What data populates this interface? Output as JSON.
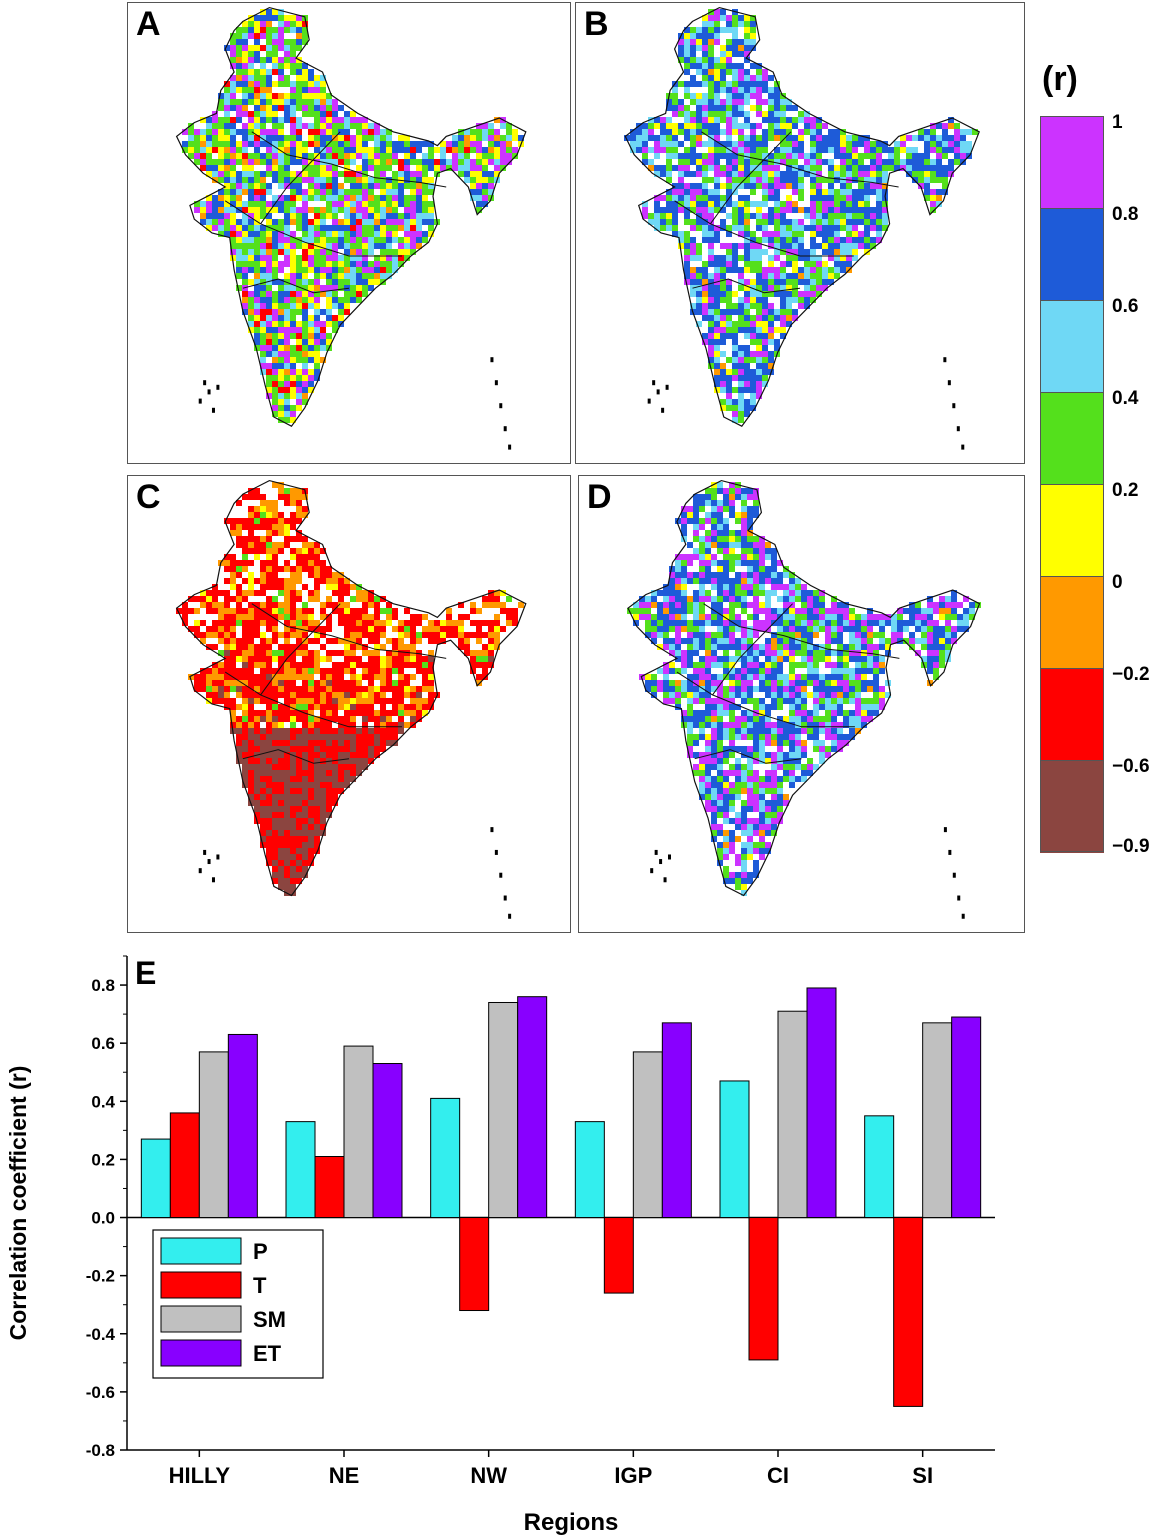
{
  "panels": [
    {
      "letter": "A",
      "mix": [
        [
          "#cc33ff",
          0.14
        ],
        [
          "#1e5bd8",
          0.16
        ],
        [
          "#6fd8f5",
          0.12
        ],
        [
          "#54e01c",
          0.26
        ],
        [
          "#ffff00",
          0.14
        ],
        [
          "#ff9900",
          0.06
        ],
        [
          "#ff0000",
          0.04
        ],
        [
          "#ffffff",
          0.08
        ]
      ]
    },
    {
      "letter": "B",
      "mix": [
        [
          "#cc33ff",
          0.14
        ],
        [
          "#1e5bd8",
          0.32
        ],
        [
          "#6fd8f5",
          0.16
        ],
        [
          "#54e01c",
          0.18
        ],
        [
          "#ffff00",
          0.04
        ],
        [
          "#ff9900",
          0.02
        ],
        [
          "#ffffff",
          0.14
        ]
      ]
    },
    {
      "letter": "C",
      "mix": [
        [
          "#8b4540",
          0.32
        ],
        [
          "#ff0000",
          0.34
        ],
        [
          "#ff9900",
          0.14
        ],
        [
          "#ffff00",
          0.03
        ],
        [
          "#54e01c",
          0.02
        ],
        [
          "#ffffff",
          0.15
        ]
      ]
    },
    {
      "letter": "D",
      "mix": [
        [
          "#cc33ff",
          0.22
        ],
        [
          "#1e5bd8",
          0.3
        ],
        [
          "#6fd8f5",
          0.14
        ],
        [
          "#54e01c",
          0.16
        ],
        [
          "#ffff00",
          0.03
        ],
        [
          "#ff9900",
          0.02
        ],
        [
          "#ffffff",
          0.13
        ]
      ]
    }
  ],
  "legend": {
    "title": "(r)",
    "bins": [
      {
        "label": "1",
        "color": "#cc33ff"
      },
      {
        "label": "0.8",
        "color": "#1e5bd8"
      },
      {
        "label": "0.6",
        "color": "#6fd8f5"
      },
      {
        "label": "0.4",
        "color": "#54e01c"
      },
      {
        "label": "0.2",
        "color": "#ffff00"
      },
      {
        "label": "0",
        "color": "#ff9900"
      },
      {
        "label": "−0.2",
        "color": "#ff0000"
      },
      {
        "label": "−0.6",
        "color": "#8b4540"
      }
    ],
    "bottom_label": "−0.9"
  },
  "chart_data": {
    "type": "bar",
    "panel_letter": "E",
    "categories": [
      "HILLY",
      "NE",
      "NW",
      "IGP",
      "CI",
      "SI"
    ],
    "series": [
      {
        "name": "P",
        "color": "#33eeee",
        "values": [
          0.27,
          0.33,
          0.41,
          0.33,
          0.47,
          0.35
        ]
      },
      {
        "name": "T",
        "color": "#ff0000",
        "values": [
          0.36,
          0.21,
          -0.32,
          -0.26,
          -0.49,
          -0.65
        ]
      },
      {
        "name": "SM",
        "color": "#c0c0c0",
        "values": [
          0.57,
          0.59,
          0.74,
          0.57,
          0.71,
          0.67
        ]
      },
      {
        "name": "ET",
        "color": "#8800ff",
        "values": [
          0.63,
          0.53,
          0.76,
          0.67,
          0.79,
          0.69
        ]
      }
    ],
    "xlabel": "Regions",
    "ylabel": "Correlation coefficient (r)",
    "ylim": [
      -0.8,
      0.9
    ],
    "yticks": [
      "0.8",
      "0.6",
      "0.4",
      "0.2",
      "0.0",
      "-0.2",
      "-0.4",
      "-0.6",
      "-0.8"
    ],
    "ytick_values": [
      0.8,
      0.6,
      0.4,
      0.2,
      0.0,
      -0.2,
      -0.4,
      -0.6,
      -0.8
    ],
    "legend_position": "left-middle"
  }
}
